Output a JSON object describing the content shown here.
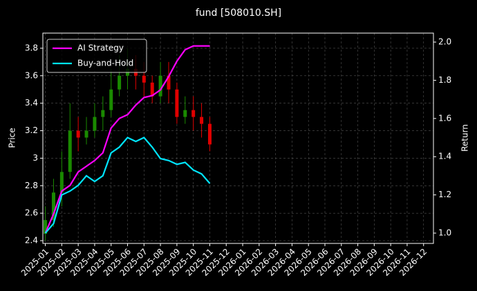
{
  "chart_data": {
    "type": "candlestick",
    "title": "fund [508010.SH]",
    "ylabel": "Price",
    "y2label": "Return",
    "x": [
      0,
      0.5,
      1,
      1.5,
      2,
      2.5,
      3,
      3.5,
      4,
      4.5,
      5,
      5.5,
      6,
      6.5,
      7,
      7.5,
      8,
      8.5,
      9,
      9.5,
      10
    ],
    "open": [
      2.45,
      2.55,
      2.75,
      2.9,
      3.2,
      3.15,
      3.2,
      3.3,
      3.35,
      3.5,
      3.6,
      3.65,
      3.6,
      3.55,
      3.45,
      3.6,
      3.5,
      3.3,
      3.35,
      3.3,
      3.25
    ],
    "high": [
      2.65,
      2.85,
      3.05,
      3.4,
      3.3,
      3.3,
      3.4,
      3.45,
      3.65,
      3.75,
      3.8,
      3.75,
      3.7,
      3.6,
      3.7,
      3.7,
      3.55,
      3.45,
      3.45,
      3.4,
      3.3
    ],
    "low": [
      2.4,
      2.5,
      2.65,
      2.85,
      3.05,
      3.1,
      3.15,
      3.2,
      3.3,
      3.45,
      3.5,
      3.5,
      3.45,
      3.4,
      3.4,
      3.4,
      3.25,
      3.25,
      3.2,
      3.15,
      3.05
    ],
    "close": [
      2.55,
      2.75,
      2.9,
      3.2,
      3.15,
      3.2,
      3.3,
      3.35,
      3.5,
      3.6,
      3.65,
      3.6,
      3.55,
      3.45,
      3.6,
      3.5,
      3.3,
      3.35,
      3.3,
      3.25,
      3.1
    ],
    "up_color": "#1a8a00",
    "down_color": "#e00000",
    "series": [
      {
        "name": "AI Strategy",
        "color": "#ff00ff",
        "axis": "y2",
        "values": [
          1.0,
          1.1,
          1.22,
          1.25,
          1.32,
          1.35,
          1.38,
          1.42,
          1.55,
          1.6,
          1.62,
          1.67,
          1.71,
          1.72,
          1.75,
          1.82,
          1.9,
          1.96,
          1.98,
          1.98,
          1.98
        ]
      },
      {
        "name": "Buy-and-Hold",
        "color": "#00e5ff",
        "axis": "y2",
        "values": [
          1.0,
          1.05,
          1.2,
          1.22,
          1.25,
          1.3,
          1.27,
          1.3,
          1.42,
          1.45,
          1.5,
          1.48,
          1.5,
          1.45,
          1.39,
          1.38,
          1.36,
          1.37,
          1.33,
          1.31,
          1.26
        ]
      }
    ],
    "xlim": [
      -0.15,
      23.6
    ],
    "xticks": [
      {
        "value": 0,
        "label": "2025-01"
      },
      {
        "value": 1,
        "label": "2025-02"
      },
      {
        "value": 2,
        "label": "2025-03"
      },
      {
        "value": 3,
        "label": "2025-04"
      },
      {
        "value": 4,
        "label": "2025-05"
      },
      {
        "value": 5,
        "label": "2025-06"
      },
      {
        "value": 6,
        "label": "2025-07"
      },
      {
        "value": 7,
        "label": "2025-08"
      },
      {
        "value": 8,
        "label": "2025-09"
      },
      {
        "value": 9,
        "label": "2025-10"
      },
      {
        "value": 10,
        "label": "2025-11"
      },
      {
        "value": 11,
        "label": "2025-12"
      },
      {
        "value": 12,
        "label": "2026-01"
      },
      {
        "value": 13,
        "label": "2026-02"
      },
      {
        "value": 14,
        "label": "2026-03"
      },
      {
        "value": 15,
        "label": "2026-04"
      },
      {
        "value": 16,
        "label": "2026-05"
      },
      {
        "value": 17,
        "label": "2026-06"
      },
      {
        "value": 18,
        "label": "2026-07"
      },
      {
        "value": 19,
        "label": "2026-08"
      },
      {
        "value": 20,
        "label": "2026-09"
      },
      {
        "value": 21,
        "label": "2026-10"
      },
      {
        "value": 22,
        "label": "2026-11"
      },
      {
        "value": 23,
        "label": "2026-12"
      }
    ],
    "ylim": [
      2.38,
      3.91
    ],
    "yticks": [
      2.4,
      2.6,
      2.8,
      3.0,
      3.2,
      3.4,
      3.6,
      3.8
    ],
    "y2lim": [
      0.946,
      2.047
    ],
    "y2ticks": [
      {
        "value": 1.0,
        "label": "1.0"
      },
      1.2,
      1.4,
      1.6,
      1.8,
      {
        "value": 2.0,
        "label": "2.0"
      }
    ],
    "grid": true,
    "legend": "upper left"
  }
}
